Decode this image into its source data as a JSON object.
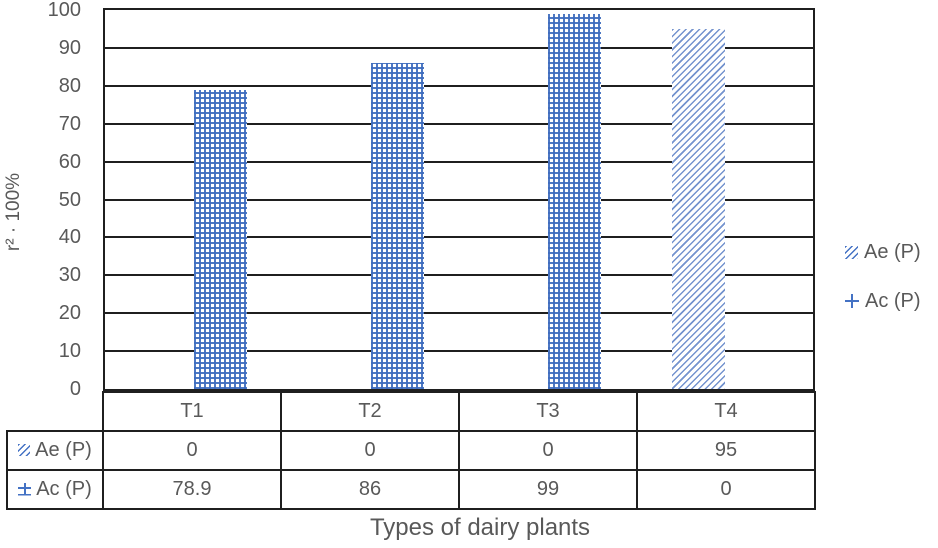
{
  "chart_data": {
    "type": "bar",
    "title": "",
    "xlabel": "Types of dairy plants",
    "ylabel": "r² · 100%",
    "categories": [
      "T1",
      "T2",
      "T3",
      "T4"
    ],
    "series": [
      {
        "name": "Ae (P)",
        "values": [
          0,
          0,
          0,
          95
        ],
        "pattern": "diagonal-hatch",
        "key_icon": "diagonal-hatch-swatch"
      },
      {
        "name": "Ac (P)",
        "values": [
          78.9,
          86,
          99,
          0
        ],
        "pattern": "crosshatch",
        "key_icon": "plus-marker"
      }
    ],
    "ylim": [
      0,
      100
    ],
    "ytick_step": 10,
    "yticks": [
      0,
      10,
      20,
      30,
      40,
      50,
      60,
      70,
      80,
      90,
      100
    ],
    "grid": "horizontal-black-lines",
    "legend_position": "right",
    "data_table_shown": true
  },
  "colors": {
    "series_blue": "#4472c4",
    "hatch_light_blue": "#7b9cd6",
    "text_gray": "#595959",
    "line_black": "#1f1f1f",
    "background": "#ffffff"
  },
  "icons": {
    "ae_legend_key": "diagonal-hatch-swatch",
    "ac_legend_key": "plus-marker"
  }
}
